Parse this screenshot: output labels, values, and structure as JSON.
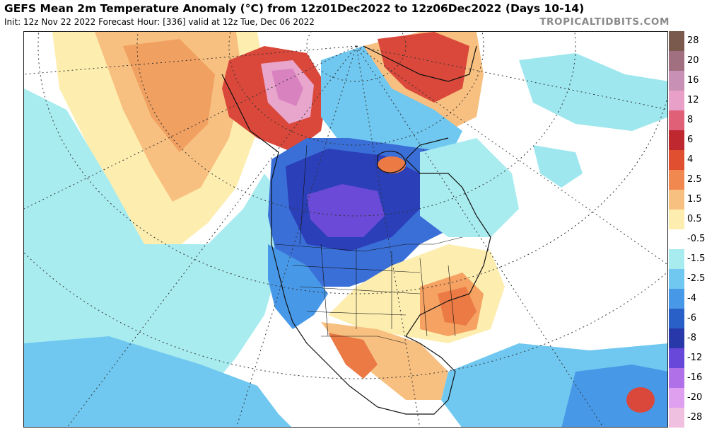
{
  "header": {
    "title": "GEFS Mean 2m Temperature Anomaly (°C) from 12z01Dec2022 to 12z06Dec2022 (Days 10-14)",
    "subtitle": "Init: 12z Nov 22 2022   Forecast Hour: [336]   valid at 12z Tue, Dec 06 2022",
    "brand": "TROPICALTIDBITS.COM"
  },
  "map": {
    "region": "North America",
    "projection": "polar stereographic",
    "colors": {
      "ocean_neutral": "#ffffff",
      "light_cyan": "#9ee7ee",
      "cyan": "#5fd3e6",
      "light_blue": "#6fb0f0",
      "blue": "#3a6fd8",
      "dark_blue": "#2a3fb8",
      "purple": "#6a4ad6",
      "light_yellow": "#fff2b8",
      "yellow": "#fbd98c",
      "orange": "#f5a263",
      "dark_orange": "#eb7a45",
      "red": "#d9483a",
      "dark_red": "#b8202c",
      "pink": "#e8a6cc",
      "coastline": "#111111",
      "gridline": "#333333"
    }
  },
  "legend": {
    "items": [
      {
        "label": "28",
        "color": "#7b5a4e"
      },
      {
        "label": "20",
        "color": "#a07080"
      },
      {
        "label": "16",
        "color": "#c890b4"
      },
      {
        "label": "12",
        "color": "#e8a0c8"
      },
      {
        "label": "8",
        "color": "#e06078"
      },
      {
        "label": "6",
        "color": "#c02830"
      },
      {
        "label": "4",
        "color": "#e05030"
      },
      {
        "label": "2.5",
        "color": "#f08850"
      },
      {
        "label": "1.5",
        "color": "#f8c080"
      },
      {
        "label": "0.5",
        "color": "#fdeeb0"
      },
      {
        "label": "-0.5",
        "color": "#ffffff"
      },
      {
        "label": "-1.5",
        "color": "#a8ecf0"
      },
      {
        "label": "-2.5",
        "color": "#70c8f0"
      },
      {
        "label": "-4",
        "color": "#4898e8"
      },
      {
        "label": "-6",
        "color": "#2860c8"
      },
      {
        "label": "-8",
        "color": "#2838a8"
      },
      {
        "label": "-12",
        "color": "#6848d8"
      },
      {
        "label": "-16",
        "color": "#b070e8"
      },
      {
        "label": "-20",
        "color": "#e0a0f0"
      },
      {
        "label": "-28",
        "color": "#f0c0e0"
      }
    ]
  }
}
